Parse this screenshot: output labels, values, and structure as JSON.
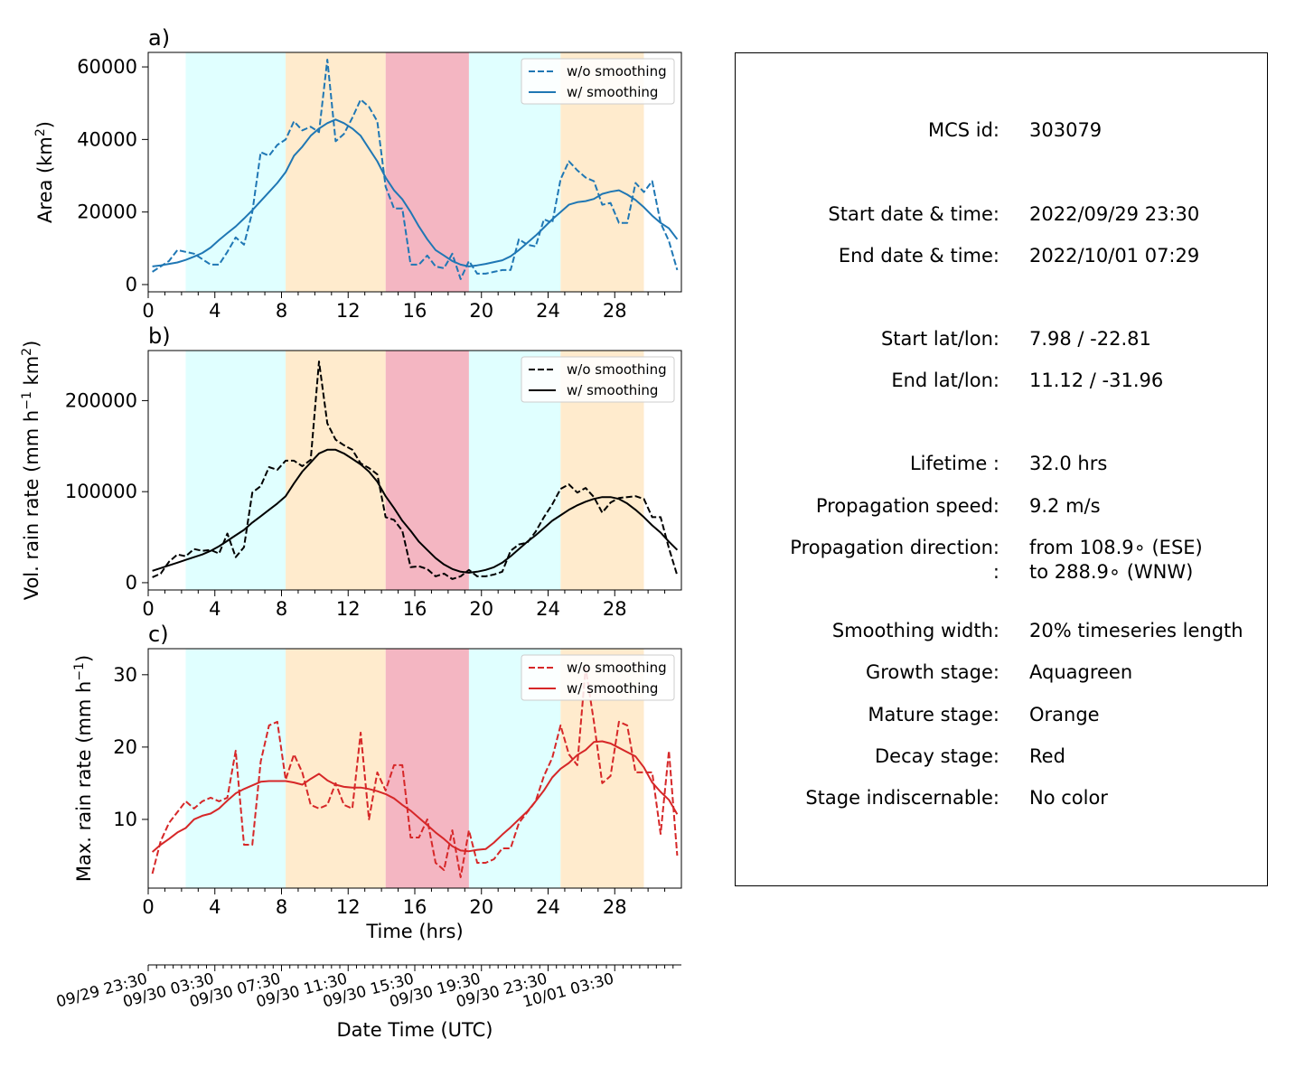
{
  "colors": {
    "growth": "#e0ffff",
    "mature": "#ffebcd",
    "decay": "#f4b6c2",
    "area": "#1f77b4",
    "volrain": "#000000",
    "maxrain": "#d62728"
  },
  "stages": [
    {
      "name": "growth",
      "start": 2.25,
      "end": 8.25
    },
    {
      "name": "mature",
      "start": 8.25,
      "end": 14.25
    },
    {
      "name": "decay",
      "start": 14.25,
      "end": 19.25
    },
    {
      "name": "growth",
      "start": 19.25,
      "end": 24.75
    },
    {
      "name": "mature",
      "start": 24.75,
      "end": 29.75
    }
  ],
  "chart_data": [
    {
      "panel_label": "a)",
      "type": "line",
      "ylabel": "Area  (km²)",
      "ylabel_main": "Area  (km",
      "ylabel_sup": "2",
      "ylabel_tail": ")",
      "xlim": [
        0,
        32
      ],
      "ylim": [
        -2000,
        64000
      ],
      "yticks": [
        0,
        20000,
        40000,
        60000
      ],
      "xticks": [
        0,
        4,
        8,
        12,
        16,
        20,
        24,
        28
      ],
      "x": [
        0.25,
        0.75,
        1.25,
        1.75,
        2.25,
        2.75,
        3.25,
        3.75,
        4.25,
        4.75,
        5.25,
        5.75,
        6.25,
        6.75,
        7.25,
        7.75,
        8.25,
        8.75,
        9.25,
        9.75,
        10.25,
        10.75,
        11.25,
        11.75,
        12.25,
        12.75,
        13.25,
        13.75,
        14.25,
        14.75,
        15.25,
        15.75,
        16.25,
        16.75,
        17.25,
        17.75,
        18.25,
        18.75,
        19.25,
        19.75,
        20.25,
        20.75,
        21.25,
        21.75,
        22.25,
        22.75,
        23.25,
        23.75,
        24.25,
        24.75,
        25.25,
        25.75,
        26.25,
        26.75,
        27.25,
        27.75,
        28.25,
        28.75,
        29.25,
        29.75,
        30.25,
        30.75,
        31.25,
        31.75
      ],
      "legend": [
        "w/o smoothing",
        "w/ smoothing"
      ],
      "series": [
        {
          "name": "w/o smoothing",
          "style": "dashed",
          "values": [
            3500,
            5000,
            6500,
            9500,
            9000,
            8500,
            7000,
            5500,
            5500,
            9000,
            13000,
            11000,
            20000,
            36500,
            35500,
            38500,
            40000,
            45000,
            42500,
            43500,
            42000,
            62000,
            39500,
            41500,
            46000,
            51000,
            49000,
            45000,
            27000,
            21000,
            21000,
            5500,
            5500,
            8000,
            5000,
            4500,
            8500,
            1500,
            6500,
            3000,
            3000,
            3500,
            4000,
            4000,
            12500,
            11000,
            10500,
            18000,
            17000,
            29000,
            34000,
            31500,
            29500,
            28500,
            22000,
            22500,
            17000,
            17000,
            28000,
            25500,
            28500,
            17000,
            12000,
            4000
          ]
        },
        {
          "name": "w/ smoothing",
          "style": "solid",
          "values": [
            5000,
            5300,
            5700,
            6100,
            6800,
            7700,
            8700,
            10200,
            12300,
            14200,
            16000,
            18200,
            20500,
            23000,
            25500,
            28000,
            31000,
            35500,
            38000,
            41000,
            43000,
            44500,
            45500,
            44500,
            43000,
            41000,
            37500,
            34000,
            29500,
            26000,
            23500,
            20000,
            16000,
            12500,
            9500,
            8000,
            6500,
            5500,
            5000,
            5300,
            5700,
            6200,
            6700,
            7800,
            9500,
            11500,
            13500,
            15700,
            18000,
            20000,
            22000,
            22700,
            23000,
            23600,
            25000,
            25600,
            26000,
            24800,
            23300,
            21300,
            19000,
            17000,
            15500,
            12500
          ]
        }
      ]
    },
    {
      "panel_label": "b)",
      "type": "line",
      "ylabel": "Vol. rain rate (mm h⁻¹ km²)",
      "ylabel_main": "Vol. rain rate (mm h",
      "ylabel_sup": "−1",
      "ylabel_mid": " km",
      "ylabel_sup2": "2",
      "ylabel_tail": ")",
      "xlim": [
        0,
        32
      ],
      "ylim": [
        -8000,
        255000
      ],
      "yticks": [
        0,
        100000,
        200000
      ],
      "xticks": [
        0,
        4,
        8,
        12,
        16,
        20,
        24,
        28
      ],
      "x": [
        0.25,
        0.75,
        1.25,
        1.75,
        2.25,
        2.75,
        3.25,
        3.75,
        4.25,
        4.75,
        5.25,
        5.75,
        6.25,
        6.75,
        7.25,
        7.75,
        8.25,
        8.75,
        9.25,
        9.75,
        10.25,
        10.75,
        11.25,
        11.75,
        12.25,
        12.75,
        13.25,
        13.75,
        14.25,
        14.75,
        15.25,
        15.75,
        16.25,
        16.75,
        17.25,
        17.75,
        18.25,
        18.75,
        19.25,
        19.75,
        20.25,
        20.75,
        21.25,
        21.75,
        22.25,
        22.75,
        23.25,
        23.75,
        24.25,
        24.75,
        25.25,
        25.75,
        26.25,
        26.75,
        27.25,
        27.75,
        28.25,
        28.75,
        29.25,
        29.75,
        30.25,
        30.75,
        31.25,
        31.75
      ],
      "legend": [
        "w/o smoothing",
        "w/ smoothing"
      ],
      "series": [
        {
          "name": "w/o smoothing",
          "style": "dashed",
          "values": [
            6000,
            10000,
            23000,
            31000,
            29000,
            37000,
            35000,
            36000,
            32000,
            54000,
            28000,
            39000,
            99000,
            106000,
            127000,
            124000,
            134000,
            134000,
            128000,
            135000,
            243000,
            175000,
            157000,
            151000,
            146000,
            131000,
            126000,
            119000,
            72000,
            69000,
            57000,
            17000,
            18000,
            15000,
            7000,
            10000,
            4000,
            7000,
            14000,
            7000,
            7000,
            9000,
            12000,
            35000,
            42000,
            44000,
            56000,
            72000,
            86000,
            103000,
            108000,
            99000,
            104000,
            94000,
            77000,
            88000,
            93000,
            94000,
            95000,
            92000,
            72000,
            72000,
            38000,
            8000
          ]
        },
        {
          "name": "w/ smoothing",
          "style": "solid",
          "values": [
            13000,
            16000,
            19000,
            22000,
            25000,
            28000,
            31000,
            35000,
            40000,
            46000,
            52000,
            58000,
            66000,
            73000,
            80000,
            87000,
            95000,
            109000,
            122000,
            132000,
            142000,
            146000,
            146000,
            142000,
            136000,
            130000,
            122000,
            111000,
            95000,
            82000,
            68000,
            57000,
            45000,
            36000,
            27000,
            20000,
            15000,
            12000,
            11000,
            12000,
            14000,
            17000,
            22000,
            29000,
            37000,
            45000,
            52000,
            60000,
            68000,
            74000,
            80000,
            85000,
            89000,
            92000,
            94000,
            94000,
            92000,
            87000,
            80000,
            72000,
            63000,
            55000,
            45000,
            36000
          ]
        }
      ]
    },
    {
      "panel_label": "c)",
      "type": "line",
      "ylabel": "Max. rain rate  (mm h⁻¹)",
      "ylabel_main": "Max. rain rate  (mm h",
      "ylabel_sup": "−1",
      "ylabel_tail": ")",
      "xlim": [
        0,
        32
      ],
      "ylim": [
        0.5,
        33.6
      ],
      "yticks": [
        10,
        20,
        30
      ],
      "xticks": [
        0,
        4,
        8,
        12,
        16,
        20,
        24,
        28
      ],
      "xlabel": "Time (hrs)",
      "x": [
        0.25,
        0.75,
        1.25,
        1.75,
        2.25,
        2.75,
        3.25,
        3.75,
        4.25,
        4.75,
        5.25,
        5.75,
        6.25,
        6.75,
        7.25,
        7.75,
        8.25,
        8.75,
        9.25,
        9.75,
        10.25,
        10.75,
        11.25,
        11.75,
        12.25,
        12.75,
        13.25,
        13.75,
        14.25,
        14.75,
        15.25,
        15.75,
        16.25,
        16.75,
        17.25,
        17.75,
        18.25,
        18.75,
        19.25,
        19.75,
        20.25,
        20.75,
        21.25,
        21.75,
        22.25,
        22.75,
        23.25,
        23.75,
        24.25,
        24.75,
        25.25,
        25.75,
        26.25,
        26.75,
        27.25,
        27.75,
        28.25,
        28.75,
        29.25,
        29.75,
        30.25,
        30.75,
        31.25,
        31.75
      ],
      "legend": [
        "w/o smoothing",
        "w/ smoothing"
      ],
      "series": [
        {
          "name": "w/o smoothing",
          "style": "dashed",
          "values": [
            2.5,
            7,
            9.5,
            11,
            12.5,
            11.5,
            12.5,
            13,
            12.5,
            13,
            19.5,
            6.5,
            6.5,
            18,
            23,
            23.5,
            15.5,
            19,
            16.5,
            12,
            11.5,
            12,
            15,
            12,
            11.5,
            22,
            10,
            16.5,
            14,
            17.5,
            17.5,
            7.5,
            7.5,
            10,
            4,
            3,
            8.5,
            2,
            8.5,
            4,
            4,
            4.5,
            6,
            6,
            9.5,
            11,
            12.5,
            16,
            18.5,
            23,
            19,
            17.5,
            31,
            23.5,
            15,
            16,
            23.5,
            23,
            16.5,
            16.5,
            16.5,
            8,
            19.5,
            5
          ]
        },
        {
          "name": "w/ smoothing",
          "style": "solid",
          "values": [
            5.5,
            6.5,
            7.3,
            8.2,
            8.8,
            10.0,
            10.5,
            10.8,
            11.5,
            12.6,
            13.6,
            14.2,
            14.7,
            15.2,
            15.3,
            15.3,
            15.3,
            15.1,
            14.8,
            15.6,
            16.3,
            15.4,
            14.8,
            14.5,
            14.4,
            14.4,
            14.2,
            13.9,
            13.5,
            12.9,
            12.0,
            11.2,
            10.2,
            9.2,
            8.2,
            7.3,
            6.3,
            5.7,
            5.6,
            5.8,
            5.9,
            6.8,
            7.9,
            8.9,
            10.0,
            11.1,
            12.5,
            14.0,
            15.8,
            17.0,
            17.8,
            18.9,
            19.6,
            20.7,
            20.8,
            20.5,
            19.9,
            19.3,
            18.7,
            17.2,
            15.1,
            13.8,
            12.7,
            10.7
          ]
        }
      ]
    }
  ],
  "datetime_axis": {
    "xlabel": "Date Time (UTC)",
    "labels": [
      {
        "x": 0,
        "label": "09/29 23:30"
      },
      {
        "x": 4,
        "label": "09/30 03:30"
      },
      {
        "x": 8,
        "label": "09/30 07:30"
      },
      {
        "x": 12,
        "label": "09/30 11:30"
      },
      {
        "x": 16,
        "label": "09/30 15:30"
      },
      {
        "x": 20,
        "label": "09/30 19:30"
      },
      {
        "x": 24,
        "label": "09/30 23:30"
      },
      {
        "x": 28,
        "label": "10/01 03:30"
      }
    ]
  },
  "info": {
    "mcs_id_label": "MCS id:",
    "mcs_id": "303079",
    "start_time_label": "Start date & time:",
    "start_time": "2022/09/29 23:30",
    "end_time_label": "End date & time:",
    "end_time": "2022/10/01 07:29",
    "start_latlon_label": "Start lat/lon:",
    "start_latlon": "7.98 / -22.81",
    "end_latlon_label": "End lat/lon:",
    "end_latlon": "11.12 / -31.96",
    "lifetime_label": "Lifetime :",
    "lifetime": "32.0 hrs",
    "speed_label": "Propagation speed:",
    "speed": "9.2 m/s",
    "direction_label": "Propagation direction:",
    "direction_from": "from 108.9∘ (ESE)",
    "direction_label2": ":",
    "direction_to": "to   288.9∘ (WNW)",
    "smoothing_label": "Smoothing width:",
    "smoothing": "20% timeseries length",
    "growth_label": "Growth stage:",
    "growth": "Aquagreen",
    "mature_label": "Mature stage:",
    "mature": "Orange",
    "decay_label": "Decay stage:",
    "decay": "Red",
    "indisc_label": "Stage indiscernable:",
    "indisc": "No color"
  }
}
